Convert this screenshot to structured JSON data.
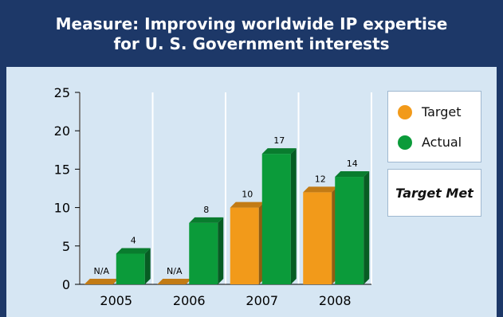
{
  "title_line1": "Measure: Improving worldwide IP expertise",
  "title_line2": "for U. S. Government interests",
  "status_text": "Target Met",
  "colors": {
    "target": "#f29a1a",
    "actual": "#0b9b3a",
    "grid": "#ffffff",
    "panel": "#d6e6f3",
    "header": "#1d3868"
  },
  "chart_data": {
    "type": "bar",
    "categories": [
      "2005",
      "2006",
      "2007",
      "2008"
    ],
    "series": [
      {
        "name": "Target",
        "values": [
          0,
          0,
          10,
          12
        ],
        "labels": [
          "N/A",
          "N/A",
          "10",
          "12"
        ]
      },
      {
        "name": "Actual",
        "values": [
          4,
          8,
          17,
          14
        ],
        "labels": [
          "4",
          "8",
          "17",
          "14"
        ]
      }
    ],
    "yticks": [
      "0",
      "5",
      "10",
      "15",
      "20",
      "25"
    ],
    "ylim": [
      0,
      25
    ],
    "legend": [
      "Target",
      "Actual"
    ],
    "legend_placement": "right"
  }
}
